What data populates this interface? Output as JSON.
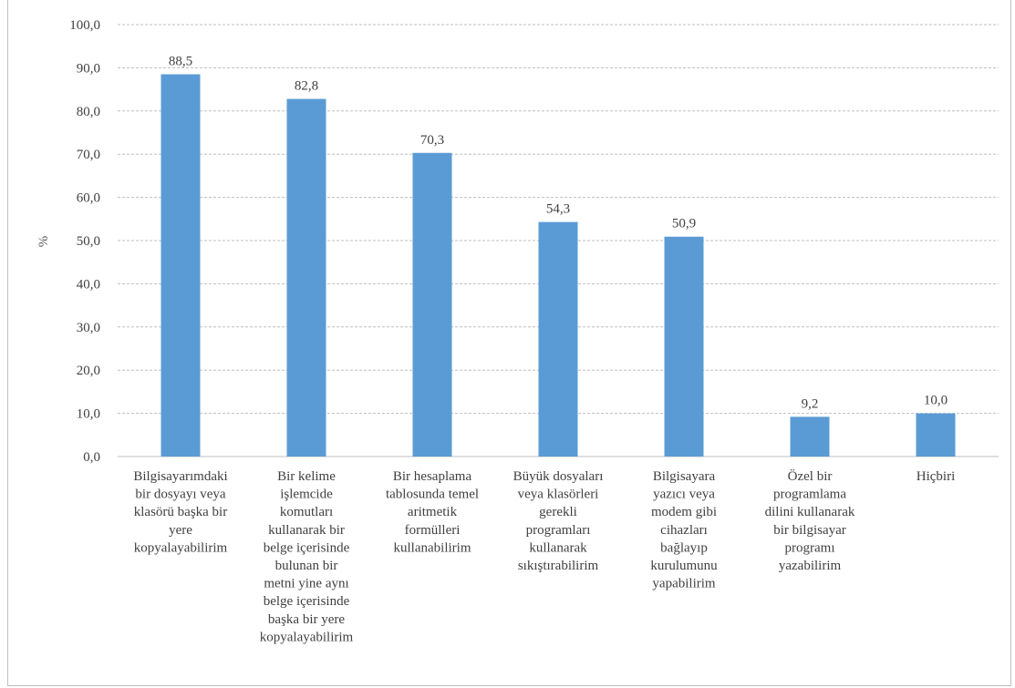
{
  "chart_data": {
    "type": "bar",
    "title": "",
    "xlabel": "",
    "ylabel": "%",
    "ylim": [
      0,
      100
    ],
    "y_ticks": [
      "0,0",
      "10,0",
      "20,0",
      "30,0",
      "40,0",
      "50,0",
      "60,0",
      "70,0",
      "80,0",
      "90,0",
      "100,0"
    ],
    "grid": true,
    "legend": "none",
    "bar_color": "#5b9bd5",
    "categories": [
      [
        "Bilgisayarımdaki",
        "bir dosyayı veya",
        "klasörü başka bir",
        "yere",
        "kopyalayabilirim"
      ],
      [
        "Bir kelime",
        "işlemcide",
        "komutları",
        "kullanarak bir",
        "belge içerisinde",
        "bulunan bir",
        "metni yine aynı",
        "belge içerisinde",
        "başka bir yere",
        "kopyalayabilirim"
      ],
      [
        "Bir hesaplama",
        "tablosunda temel",
        "aritmetik",
        "formülleri",
        "kullanabilirim"
      ],
      [
        "Büyük dosyaları",
        "veya klasörleri",
        "gerekli",
        "programları",
        "kullanarak",
        "sıkıştırabilirim"
      ],
      [
        "Bilgisayara",
        "yazıcı veya",
        "modem gibi",
        "cihazları",
        "bağlayıp",
        "kurulumunu",
        "yapabilirim"
      ],
      [
        "Özel bir",
        "programlama",
        "dilini kullanarak",
        "bir bilgisayar",
        "programı",
        "yazabilirim"
      ],
      [
        "Hiçbiri"
      ]
    ],
    "values": [
      88.5,
      82.8,
      70.3,
      54.3,
      50.9,
      9.2,
      10.0
    ],
    "value_labels": [
      "88,5",
      "82,8",
      "70,3",
      "54,3",
      "50,9",
      "9,2",
      "10,0"
    ]
  }
}
